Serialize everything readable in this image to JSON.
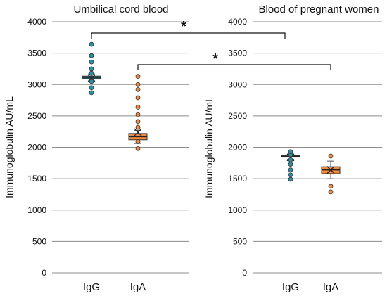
{
  "chart_data": [
    {
      "type": "box",
      "title": "Umbilical cord blood",
      "ylabel": "Immunoglobulin AU/mL",
      "ylim": [
        0,
        4000
      ],
      "yticks": [
        0,
        500,
        1000,
        1500,
        2000,
        2500,
        3000,
        3500,
        4000
      ],
      "categories": [
        "IgG",
        "IgA"
      ],
      "colors": [
        "#2e8fa3",
        "#f08a3c"
      ],
      "boxes": [
        {
          "name": "IgG",
          "q1": 3095,
          "median": 3115,
          "q3": 3135,
          "whisker_low": 3060,
          "whisker_high": 3170,
          "mean": 3100,
          "points": [
            2870,
            2950,
            3050,
            3180,
            3250,
            3360,
            3460,
            3640
          ]
        },
        {
          "name": "IgA",
          "q1": 2120,
          "median": 2170,
          "q3": 2220,
          "whisker_low": 2060,
          "whisker_high": 2270,
          "mean": 2240,
          "points": [
            1980,
            2090,
            2320,
            2410,
            2520,
            2640,
            2790,
            2920,
            3000,
            3130
          ]
        }
      ]
    },
    {
      "type": "box",
      "title": "Blood of pregnant women",
      "ylabel": "Immunoglobulin AU/mL",
      "ylim": [
        0,
        4000
      ],
      "yticks": [
        0,
        500,
        1000,
        1500,
        2000,
        2500,
        3000,
        3500,
        4000
      ],
      "categories": [
        "IgG",
        "IgA"
      ],
      "colors": [
        "#2e8fa3",
        "#f08a3c"
      ],
      "boxes": [
        {
          "name": "IgG",
          "q1": 1845,
          "median": 1855,
          "q3": 1865,
          "whisker_low": 1810,
          "whisker_high": 1890,
          "mean": 1840,
          "points": [
            1490,
            1560,
            1640,
            1730,
            1800,
            1880,
            1930
          ]
        },
        {
          "name": "IgA",
          "q1": 1580,
          "median": 1640,
          "q3": 1690,
          "whisker_low": 1500,
          "whisker_high": 1780,
          "mean": 1640,
          "points": [
            1290,
            1380,
            1860
          ]
        }
      ]
    }
  ],
  "annotations": {
    "significance": "*"
  }
}
